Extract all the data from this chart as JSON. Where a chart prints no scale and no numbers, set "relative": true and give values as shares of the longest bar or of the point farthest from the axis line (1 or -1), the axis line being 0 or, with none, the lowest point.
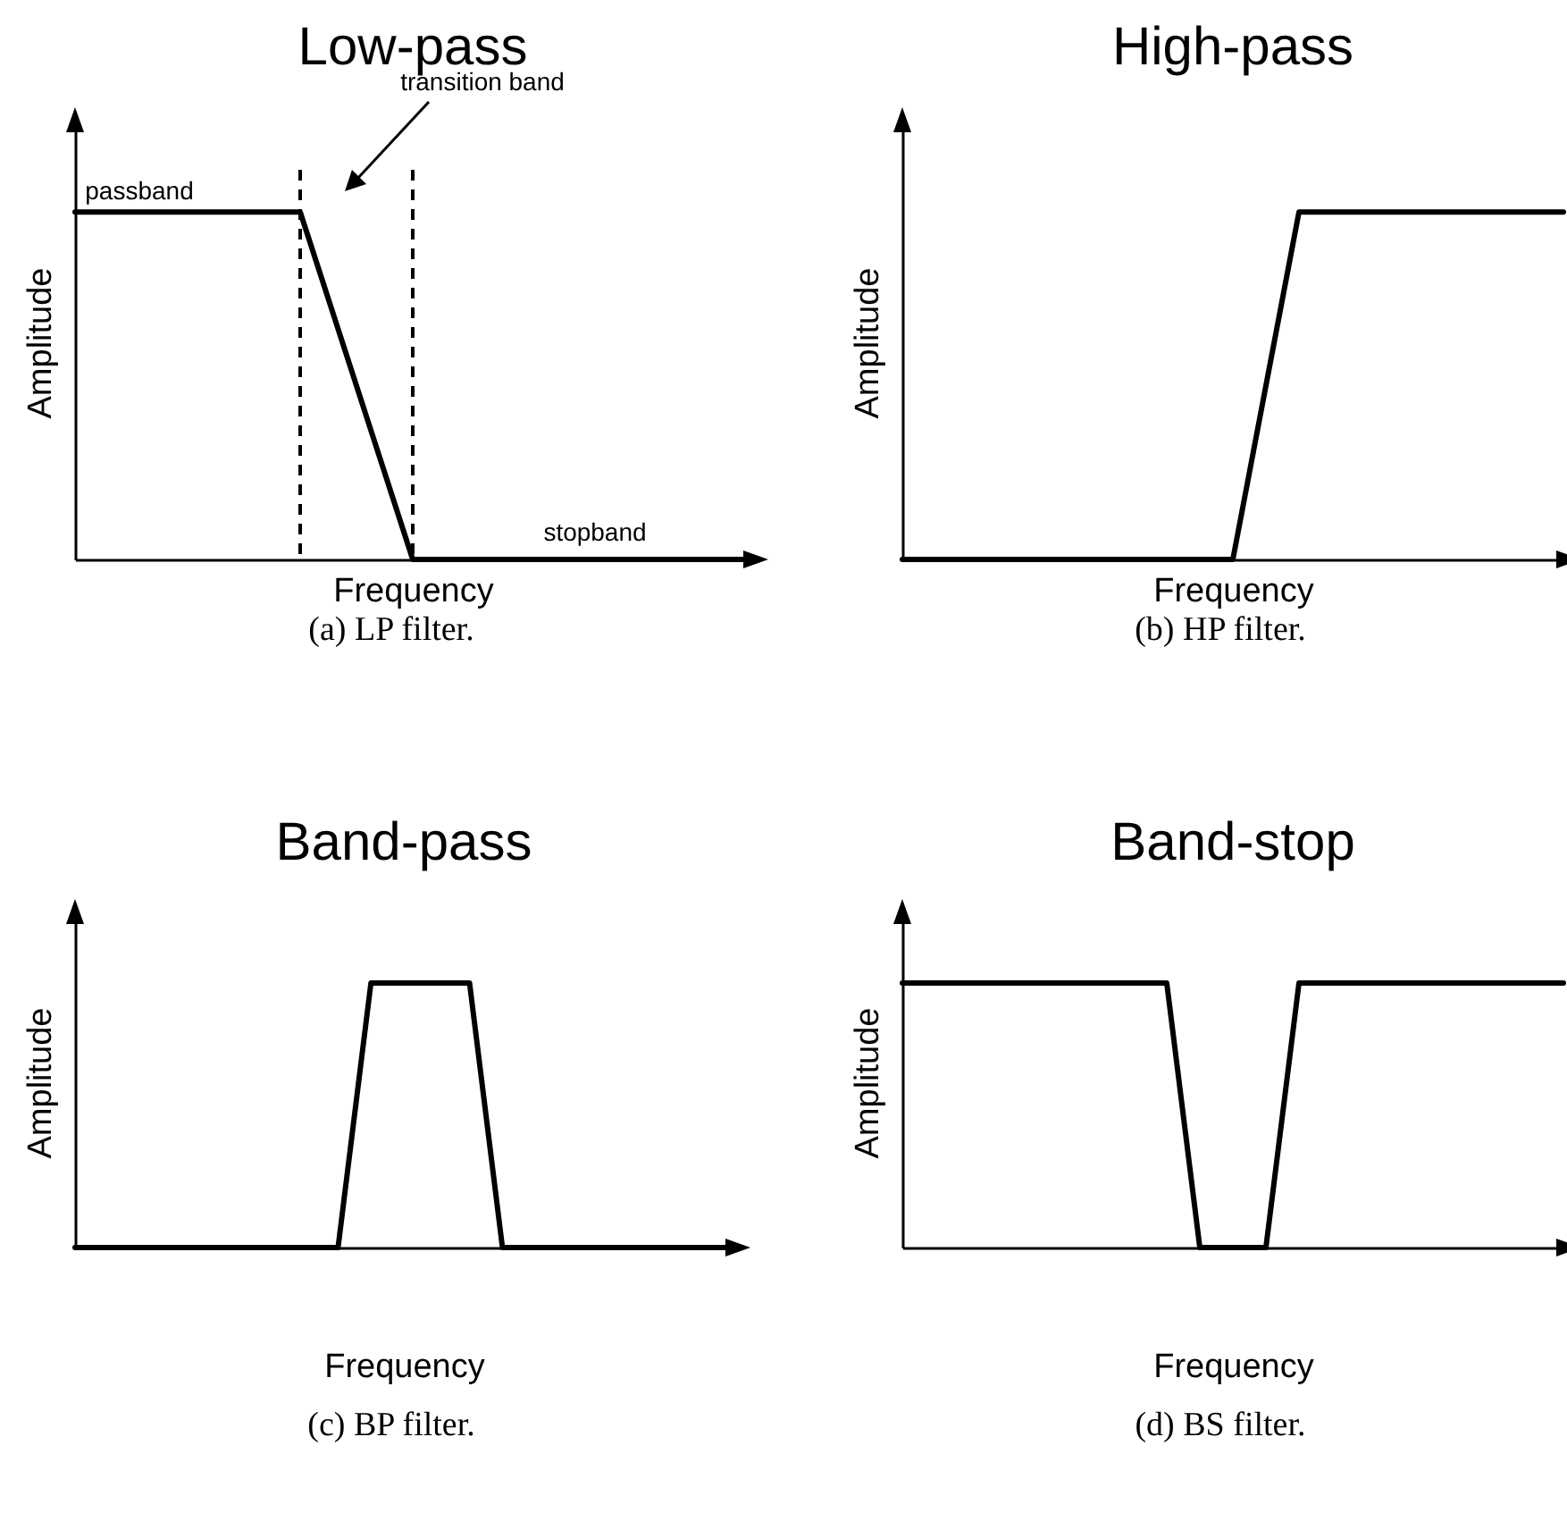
{
  "chart_data": [
    {
      "type": "line",
      "title": "Low-pass",
      "xlabel": "Frequency",
      "ylabel": "Amplitude",
      "relative": true,
      "color": "#000000",
      "categories": [
        null,
        null,
        null,
        null,
        null,
        null,
        null
      ],
      "values": [
        1,
        1,
        1,
        0,
        0,
        0,
        0
      ],
      "annotations": [
        "passband",
        "transition band",
        "stopband",
        "(a) LP filter."
      ]
    },
    {
      "type": "line",
      "title": "High-pass",
      "xlabel": "Frequency",
      "ylabel": "Amplitude",
      "relative": true,
      "color": "#000000",
      "categories": [
        null,
        null,
        null,
        null,
        null,
        null,
        null,
        null,
        null,
        null,
        null
      ],
      "values": [
        0,
        0,
        0,
        0,
        0,
        0,
        1,
        1,
        1,
        1,
        1
      ],
      "annotations": [
        "(b) HP filter."
      ]
    },
    {
      "type": "line",
      "title": "Band-pass",
      "xlabel": "Frequency",
      "ylabel": "Amplitude",
      "relative": true,
      "color": "#000000",
      "categories": [
        null,
        null,
        null,
        null,
        null,
        null,
        null,
        null,
        null,
        null,
        null,
        null,
        null,
        null,
        null,
        null,
        null,
        null,
        null,
        null,
        null
      ],
      "values": [
        0,
        0,
        0,
        0,
        0,
        0,
        0,
        0,
        0,
        1,
        1,
        1,
        1,
        0,
        0,
        0,
        0,
        0,
        0,
        0,
        0
      ],
      "annotations": [
        "(c) BP filter."
      ]
    },
    {
      "type": "line",
      "title": "Band-stop",
      "xlabel": "Frequency",
      "ylabel": "Amplitude",
      "relative": true,
      "color": "#000000",
      "categories": [
        null,
        null,
        null,
        null,
        null,
        null,
        null,
        null,
        null,
        null,
        null,
        null,
        null,
        null,
        null,
        null,
        null,
        null,
        null,
        null,
        null
      ],
      "values": [
        1,
        1,
        1,
        1,
        1,
        1,
        1,
        1,
        1,
        0,
        0,
        0,
        1,
        1,
        1,
        1,
        1,
        1,
        1,
        1,
        1
      ],
      "annotations": [
        "(d) BS filter."
      ]
    }
  ]
}
